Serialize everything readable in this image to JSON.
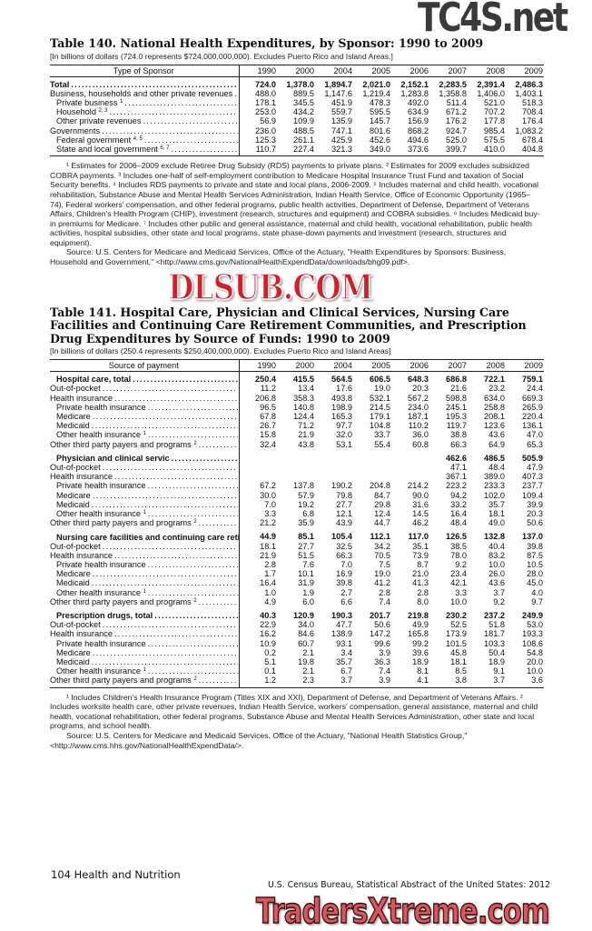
{
  "table140": {
    "title": "Table 140. National Health Expenditures, by Sponsor: 1990 to 2009",
    "subtitle": "[In billions of dollars (724.0 represents $724,000,000,000). Excludes Puerto Rico and Island Areas.]",
    "header_label": "Type of Sponsor",
    "years": [
      "1990",
      "2000",
      "2004",
      "2005",
      "2006",
      "2007",
      "2008",
      "2009"
    ],
    "rows": [
      {
        "label": "Total",
        "sup": "",
        "indent": 0,
        "bold": true,
        "values": [
          "724.0",
          "1,378.0",
          "1,894.7",
          "2,021.0",
          "2,152.1",
          "2,283.5",
          "2,391.4",
          "2,486.3"
        ]
      },
      {
        "label": "Business, households and other private revenues",
        "sup": "",
        "indent": 0,
        "values": [
          "488.0",
          "889.5",
          "1,147.6",
          "1,219.4",
          "1,283.8",
          "1,358.8",
          "1,406.0",
          "1,403.1"
        ]
      },
      {
        "label": "Private business",
        "sup": "1",
        "indent": 1,
        "values": [
          "178.1",
          "345.5",
          "451.9",
          "478.3",
          "492.0",
          "511.4",
          "521.0",
          "518.3"
        ]
      },
      {
        "label": "Household",
        "sup": "2, 3",
        "indent": 1,
        "values": [
          "253.0",
          "434.2",
          "559.7",
          "595.5",
          "634.9",
          "671.2",
          "707.2",
          "708.4"
        ]
      },
      {
        "label": "Other private revenues",
        "sup": "",
        "indent": 1,
        "values": [
          "56.9",
          "109.9",
          "135.9",
          "145.7",
          "156.9",
          "176.2",
          "177.8",
          "176.4"
        ]
      },
      {
        "label": "Governments",
        "sup": "",
        "indent": 0,
        "values": [
          "236.0",
          "488.5",
          "747.1",
          "801.6",
          "868.2",
          "924.7",
          "985.4",
          "1,083.2"
        ]
      },
      {
        "label": "Federal government",
        "sup": "4, 5",
        "indent": 1,
        "values": [
          "125.3",
          "261.1",
          "425.9",
          "452.6",
          "494.6",
          "525.0",
          "575.5",
          "678.4"
        ]
      },
      {
        "label": "State and local government",
        "sup": "6, 7",
        "indent": 1,
        "values": [
          "110.7",
          "227.4",
          "321.3",
          "349.0",
          "373.6",
          "399.7",
          "410.0",
          "404.8"
        ]
      }
    ],
    "footnotes": "¹ Estimates for 2006–2009 exclude Retiree Drug Subsidy (RDS) payments to private plans. ² Estimates for 2009 excludes subsidized COBRA payments. ³ Includes one-half of self-employment contribution to Medicare Hospital Insurance Trust Fund and taxation of Social Security benefits. ⁴ Includes RDS payments to private and state and local plans, 2006-2009. ⁵ Includes maternal and child health, vocational rehabilitation, Substance Abuse and Mental Health Services Administration, Indian Health Service, Office of Economic Opportunity (1965–74), Federal workers' compensation, and other federal programs, public health activities, Department of Defense, Department of Veterans Affairs, Children's Health Program (CHIP), investment (research, structures and equipment) and COBRA subsidies. ⁶ Includes Medicaid buy-in premiums for Medicare. ⁷ Includes other public and general assistance, maternal and child health, vocational rehabilitation, public health activities, hospital subsidies, other state and local programs, state phase-down payments and investment (research, structures and equipment).",
    "source": "Source: U.S. Centers for Medicare and Medicaid Services, Office of the Actuary, \"Health Expenditures by Sponsors: Business, Household and Government,\" <http://www.cms.gov/NationalHealthExpendData/downloads/bhg09.pdf>."
  },
  "table141": {
    "title": "Table 141. Hospital Care, Physician and Clinical Services, Nursing Care Facilities and Continuing Care Retirement Communities, and Prescription Drug Expenditures by Source of Funds: 1990 to 2009",
    "subtitle": "[In billions of dollars (250.4 represents $250,400,000,000). Excludes Puerto Rico and Island Areas]",
    "header_label": "Source of payment",
    "years": [
      "1990",
      "2000",
      "2004",
      "2005",
      "2006",
      "2007",
      "2008",
      "2009"
    ],
    "rows": [
      {
        "label": "Hospital care, total",
        "sup": "",
        "indent": 1,
        "bold": true,
        "values": [
          "250.4",
          "415.5",
          "564.5",
          "606.5",
          "648.3",
          "686.8",
          "722.1",
          "759.1"
        ]
      },
      {
        "label": "Out-of-pocket",
        "sup": "",
        "indent": 0,
        "values": [
          "11.2",
          "13.4",
          "17.6",
          "19.0",
          "20.3",
          "21.6",
          "23.2",
          "24.4"
        ]
      },
      {
        "label": "Health insurance",
        "sup": "",
        "indent": 0,
        "values": [
          "206.8",
          "358.3",
          "493.8",
          "532.1",
          "567.2",
          "598.8",
          "634.0",
          "669.3"
        ]
      },
      {
        "label": "Private health insurance",
        "sup": "",
        "indent": 1,
        "values": [
          "96.5",
          "140.8",
          "198.9",
          "214.5",
          "234.0",
          "245.1",
          "258.8",
          "265.9"
        ]
      },
      {
        "label": "Medicare",
        "sup": "",
        "indent": 1,
        "values": [
          "67.8",
          "124.4",
          "165.3",
          "179.1",
          "187.1",
          "195.3",
          "208.1",
          "220.4"
        ]
      },
      {
        "label": "Medicaid",
        "sup": "",
        "indent": 1,
        "values": [
          "26.7",
          "71.2",
          "97.7",
          "104.8",
          "110.2",
          "119.7",
          "123.6",
          "136.1"
        ]
      },
      {
        "label": "Other health insurance",
        "sup": "1",
        "indent": 1,
        "values": [
          "15.8",
          "21.9",
          "32.0",
          "33.7",
          "36.0",
          "38.8",
          "43.6",
          "47.0"
        ]
      },
      {
        "label": "Other third party payers and programs",
        "sup": "2",
        "indent": 0,
        "values": [
          "32.4",
          "43.8",
          "53.1",
          "55.4",
          "60.8",
          "66.3",
          "64.9",
          "65.3"
        ]
      },
      {
        "label": "Physician and clinical servic",
        "sup": "",
        "indent": 1,
        "bold": true,
        "gap": true,
        "values": [
          "",
          "",
          "",
          "",
          "",
          "462.6",
          "486.5",
          "505.9"
        ]
      },
      {
        "label": "Out-of-pocket",
        "sup": "",
        "indent": 0,
        "values": [
          "",
          "",
          "",
          "",
          "",
          "47.1",
          "48.4",
          "47.9"
        ]
      },
      {
        "label": "Health insurance",
        "sup": "",
        "indent": 0,
        "values": [
          "",
          "",
          "",
          "",
          "",
          "367.1",
          "389.0",
          "407.3"
        ]
      },
      {
        "label": "Private health insurance",
        "sup": "",
        "indent": 1,
        "values": [
          "67.2",
          "137.8",
          "190.2",
          "204.8",
          "214.2",
          "223.2",
          "233.3",
          "237.7"
        ]
      },
      {
        "label": "Medicare",
        "sup": "",
        "indent": 1,
        "values": [
          "30.0",
          "57.9",
          "79.8",
          "84.7",
          "90.0",
          "94.2",
          "102.0",
          "109.4"
        ]
      },
      {
        "label": "Medicaid",
        "sup": "",
        "indent": 1,
        "values": [
          "7.0",
          "19.2",
          "27.7",
          "29.8",
          "31.6",
          "33.2",
          "35.7",
          "39.9"
        ]
      },
      {
        "label": "Other health insurance",
        "sup": "1",
        "indent": 1,
        "values": [
          "3.3",
          "6.8",
          "12.1",
          "12.4",
          "14.5",
          "16.4",
          "18.1",
          "20.3"
        ]
      },
      {
        "label": "Other third party payers and programs",
        "sup": "2",
        "indent": 0,
        "values": [
          "21.2",
          "35.9",
          "43.9",
          "44.7",
          "46.2",
          "48.4",
          "49.0",
          "50.6"
        ]
      },
      {
        "label": "Nursing care facilities and continuing care retirement communities, total",
        "sup": "",
        "indent": 1,
        "bold": true,
        "gap": true,
        "two": true,
        "values": [
          "44.9",
          "85.1",
          "105.4",
          "112.1",
          "117.0",
          "126.5",
          "132.8",
          "137.0"
        ]
      },
      {
        "label": "Out-of-pocket",
        "sup": "",
        "indent": 0,
        "values": [
          "18.1",
          "27.7",
          "32.5",
          "34.2",
          "35.1",
          "38.5",
          "40.4",
          "39.8"
        ]
      },
      {
        "label": "Health insurance",
        "sup": "",
        "indent": 0,
        "values": [
          "21.9",
          "51.5",
          "66.3",
          "70.5",
          "73.9",
          "78.0",
          "83.2",
          "87.5"
        ]
      },
      {
        "label": "Private health insurance",
        "sup": "",
        "indent": 1,
        "values": [
          "2.8",
          "7.6",
          "7.0",
          "7.5",
          "8.7",
          "9.2",
          "10.0",
          "10.5"
        ]
      },
      {
        "label": "Medicare",
        "sup": "",
        "indent": 1,
        "values": [
          "1.7",
          "10.1",
          "16.9",
          "19.0",
          "21.0",
          "23.4",
          "26.0",
          "28.0"
        ]
      },
      {
        "label": "Medicaid",
        "sup": "",
        "indent": 1,
        "values": [
          "16.4",
          "31.9",
          "39.8",
          "41.2",
          "41.3",
          "42.1",
          "43.6",
          "45.0"
        ]
      },
      {
        "label": "Other health insurance",
        "sup": "1",
        "indent": 1,
        "values": [
          "1.0",
          "1.9",
          "2.7",
          "2.8",
          "2.8",
          "3.3",
          "3.7",
          "4.0"
        ]
      },
      {
        "label": "Other third party payers and programs",
        "sup": "2",
        "indent": 0,
        "values": [
          "4.9",
          "6.0",
          "6.6",
          "7.4",
          "8.0",
          "10.0",
          "9.2",
          "9.7"
        ]
      },
      {
        "label": "Prescription drugs, total",
        "sup": "",
        "indent": 1,
        "bold": true,
        "gap": true,
        "values": [
          "40.3",
          "120.9",
          "190.3",
          "201.7",
          "219.8",
          "230.2",
          "237.2",
          "249.9"
        ]
      },
      {
        "label": "Out-of-pocket",
        "sup": "",
        "indent": 0,
        "values": [
          "22.9",
          "34.0",
          "47.7",
          "50.6",
          "49.9",
          "52.5",
          "51.8",
          "53.0"
        ]
      },
      {
        "label": "Health insurance",
        "sup": "",
        "indent": 0,
        "values": [
          "16.2",
          "84.6",
          "138.9",
          "147.2",
          "165.8",
          "173.9",
          "181.7",
          "193.3"
        ]
      },
      {
        "label": "Private health insurance",
        "sup": "",
        "indent": 1,
        "values": [
          "10.9",
          "60.7",
          "93.1",
          "99.6",
          "99.2",
          "101.5",
          "103.3",
          "108.6"
        ]
      },
      {
        "label": "Medicare",
        "sup": "",
        "indent": 1,
        "values": [
          "0.2",
          "2.1",
          "3.4",
          "3.9",
          "39.6",
          "45.8",
          "50.4",
          "54.8"
        ]
      },
      {
        "label": "Medicaid",
        "sup": "",
        "indent": 1,
        "values": [
          "5.1",
          "19.8",
          "35.7",
          "36.3",
          "18.9",
          "18.1",
          "18.9",
          "20.0"
        ]
      },
      {
        "label": "Other health insurance",
        "sup": "1",
        "indent": 1,
        "values": [
          "0.1",
          "2.1",
          "6.7",
          "7.4",
          "8.1",
          "8.5",
          "9.1",
          "10.0"
        ]
      },
      {
        "label": "Other third party payers and programs",
        "sup": "2",
        "indent": 0,
        "values": [
          "1.2",
          "2.3",
          "3.7",
          "3.9",
          "4.1",
          "3.8",
          "3.7",
          "3.6"
        ]
      }
    ],
    "footnotes": "¹ Includes Children's Health Insurance Program (Titles XIX and XXI), Department of Defense, and Department of Veterans Affairs. ² Includes worksite health care, other private revenues, Indian Health Service, workers' compensation, general assistance, maternal and child health, vocational rehabilitation, other federal programs, Substance Abuse and Mental Health Services Administration, other state and local programs, and school health.",
    "source": "Source: U.S. Centers for Medicare and Medicaid Services, Office of the Actuary, \"National Health Statistics Group,\" <http://www.cms.hhs.gov/NationalHealthExpendData/>."
  },
  "footer": {
    "page": "104  Health and Nutrition",
    "publication": "U.S. Census Bureau, Statistical Abstract of the United States: 2012"
  },
  "watermarks": {
    "top": "TC4S.net",
    "middle": "DLSUB.COM",
    "bottom": "TradersXtreme.com"
  }
}
